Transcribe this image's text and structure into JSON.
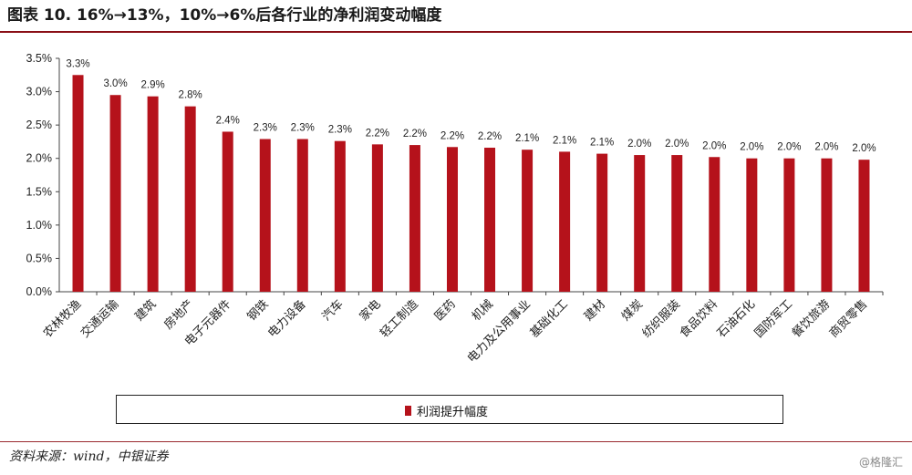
{
  "header": {
    "title": "图表 10. 16%→13%，10%→6%后各行业的净利润变动幅度"
  },
  "footer": {
    "source": "资料来源：wind，中银证券",
    "watermark": "@格隆汇"
  },
  "colors": {
    "bar": "#b5121b",
    "accent_rule": "#8a0f16"
  },
  "chart_data": {
    "type": "bar",
    "title": "",
    "xlabel": "",
    "ylabel": "",
    "ylim": [
      0,
      3.5
    ],
    "yticks": [
      "0.0%",
      "0.5%",
      "1.0%",
      "1.5%",
      "2.0%",
      "2.5%",
      "3.0%",
      "3.5%"
    ],
    "ytick_values": [
      0,
      0.5,
      1.0,
      1.5,
      2.0,
      2.5,
      3.0,
      3.5
    ],
    "grid": false,
    "legend_position": "bottom",
    "categories": [
      "农林牧渔",
      "交通运输",
      "建筑",
      "房地产",
      "电子元器件",
      "钢铁",
      "电力设备",
      "汽车",
      "家电",
      "轻工制造",
      "医药",
      "机械",
      "电力及公用事业",
      "基础化工",
      "建材",
      "煤炭",
      "纺织服装",
      "食品饮料",
      "石油石化",
      "国防军工",
      "餐饮旅游",
      "商贸零售"
    ],
    "series": [
      {
        "name": "利润提升幅度",
        "values": [
          3.25,
          2.95,
          2.93,
          2.78,
          2.4,
          2.29,
          2.29,
          2.26,
          2.21,
          2.2,
          2.17,
          2.16,
          2.13,
          2.1,
          2.07,
          2.05,
          2.05,
          2.02,
          2.0,
          2.0,
          2.0,
          1.98
        ],
        "labels": [
          "3.3%",
          "3.0%",
          "2.9%",
          "2.8%",
          "2.4%",
          "2.3%",
          "2.3%",
          "2.3%",
          "2.2%",
          "2.2%",
          "2.2%",
          "2.2%",
          "2.1%",
          "2.1%",
          "2.1%",
          "2.0%",
          "2.0%",
          "2.0%",
          "2.0%",
          "2.0%",
          "2.0%",
          "2.0%"
        ]
      }
    ]
  }
}
